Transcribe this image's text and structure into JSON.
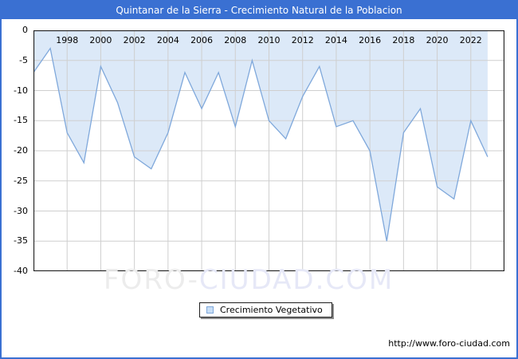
{
  "title": "Quintanar de la Sierra - Crecimiento Natural de la Poblacion",
  "legend": {
    "label": "Crecimiento Vegetativo"
  },
  "watermark": {
    "left": "FORO-",
    "right": "CIUDAD.COM"
  },
  "footer": {
    "url": "http://www.foro-ciudad.com"
  },
  "colors": {
    "frame": "#3A70D2",
    "titlebar_bg": "#3A70D2",
    "titlebar_text": "#FFFFFF",
    "area_fill": "#DCE9F8",
    "line": "#7FA8DB",
    "grid": "#CFCFCF",
    "plot_border": "#1F1F1F",
    "tick_text": "#000000",
    "watermark_gray": "#ECECEC",
    "watermark_blue": "#E6E8F7",
    "legend_marker_fill": "#C8DEF5",
    "legend_marker_border": "#7FA8DB"
  },
  "chart_data": {
    "type": "area",
    "title": "Quintanar de la Sierra - Crecimiento Natural de la Poblacion",
    "series_name": "Crecimiento Vegetativo",
    "x": [
      1996,
      1997,
      1998,
      1999,
      2000,
      2001,
      2002,
      2003,
      2004,
      2005,
      2006,
      2007,
      2008,
      2009,
      2010,
      2011,
      2012,
      2013,
      2014,
      2015,
      2016,
      2017,
      2018,
      2019,
      2020,
      2021,
      2022,
      2023
    ],
    "values": [
      -7,
      -3,
      -17,
      -22,
      -6,
      -12,
      -21,
      -23,
      -17,
      -7,
      -13,
      -7,
      -16,
      -5,
      -15,
      -18,
      -11,
      -6,
      -16,
      -15,
      -20,
      -35,
      -17,
      -13,
      -26,
      -28,
      -15,
      -21
    ],
    "xlim": [
      1996,
      2024
    ],
    "ylim": [
      -40,
      0
    ],
    "xticks": [
      1998,
      2000,
      2002,
      2004,
      2006,
      2008,
      2010,
      2012,
      2014,
      2016,
      2018,
      2020,
      2022
    ],
    "yticks": [
      0,
      -5,
      -10,
      -15,
      -20,
      -25,
      -30,
      -35,
      -40
    ],
    "grid": true,
    "xlabel": "",
    "ylabel": "",
    "legend_position": "bottom-center"
  }
}
